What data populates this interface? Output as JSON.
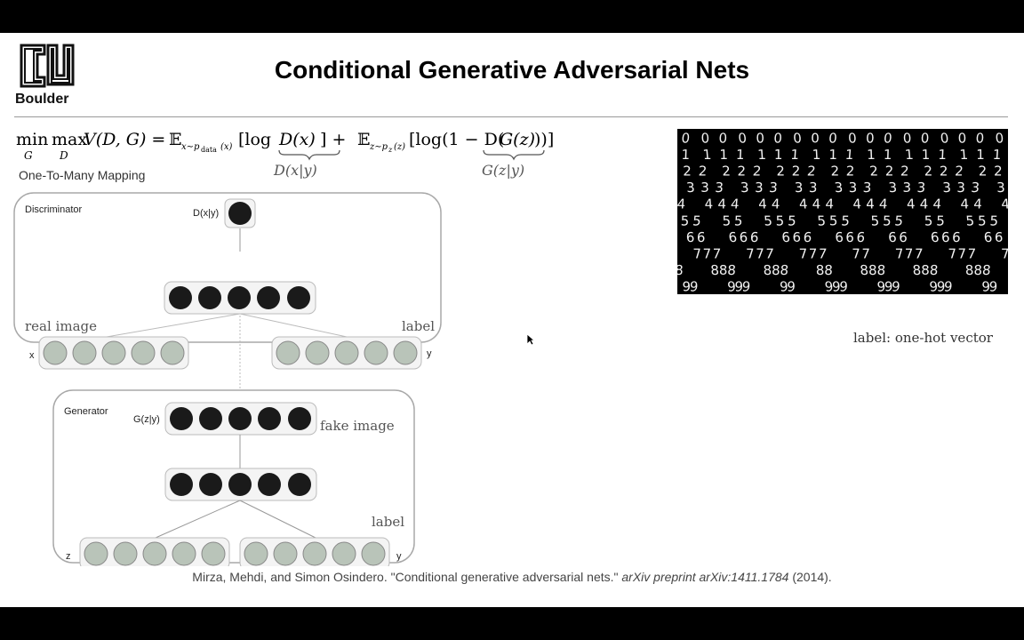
{
  "header": {
    "logo_text": "Boulder",
    "title": "Conditional Generative Adversarial Nets"
  },
  "equation": {
    "min": "min",
    "max": "max",
    "min_sub": "G",
    "max_sub": "D",
    "lhs": "V(D, G) =",
    "e1": "𝔼",
    "e1_sub": "x∼p",
    "e1_sub2": "data",
    "e1_sub3": "(x)",
    "t1a": "[log ",
    "t1b": "D(x)",
    "t1c": "] +",
    "e2": "𝔼",
    "e2_sub": "z∼p",
    "e2_sub2": "z",
    "e2_sub3": "(z)",
    "t2a": "[log(1 − D(",
    "t2b": "G(z)",
    "t2c": "))]",
    "brace1": "D(x|y)",
    "brace2": "G(z|y)"
  },
  "mapping_label": "One-To-Many Mapping",
  "diagram": {
    "discriminator_label": "Discriminator",
    "dxy_label": "D(x|y)",
    "real_image_label": "real image",
    "label_label": "label",
    "x_label": "x",
    "y_label": "y",
    "generator_label": "Generator",
    "gzy_label": "G(z|y)",
    "fake_image_label": "fake image",
    "label_label_2": "label",
    "z_label": "z",
    "y_label_2": "y",
    "colors": {
      "dark_node": "#1a1a1a",
      "light_node": "#b9c4b9",
      "box_border": "#a8a8a8"
    }
  },
  "mnist": {
    "rows": [
      "0",
      "1",
      "2",
      "3",
      "4",
      "5",
      "6",
      "7",
      "8",
      "9"
    ],
    "columns": 18
  },
  "label_note": "label: one-hot vector",
  "citation": {
    "authors": "Mirza, Mehdi, and Simon Osindero. \"Conditional generative adversarial nets.\" ",
    "venue": "arXiv preprint arXiv:1411.1784",
    "year": " (2014)."
  }
}
